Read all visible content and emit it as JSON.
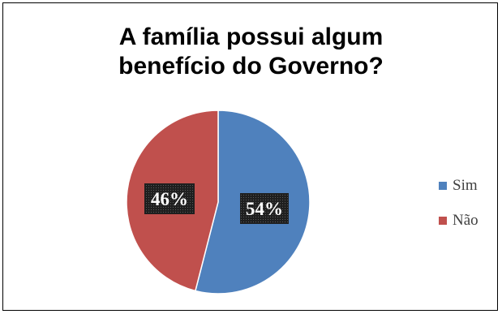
{
  "chart_data": {
    "type": "pie",
    "title_lines": [
      "A família possui algum",
      "benefício do Governo?"
    ],
    "slices": [
      {
        "label": "Sim",
        "value": 54,
        "data_label": "54%",
        "color": "#4F81BD"
      },
      {
        "label": "Não",
        "value": 46,
        "data_label": "46%",
        "color": "#C0504D"
      }
    ],
    "legend_position": "right",
    "start_angle_deg": 0,
    "direction": "clockwise"
  }
}
